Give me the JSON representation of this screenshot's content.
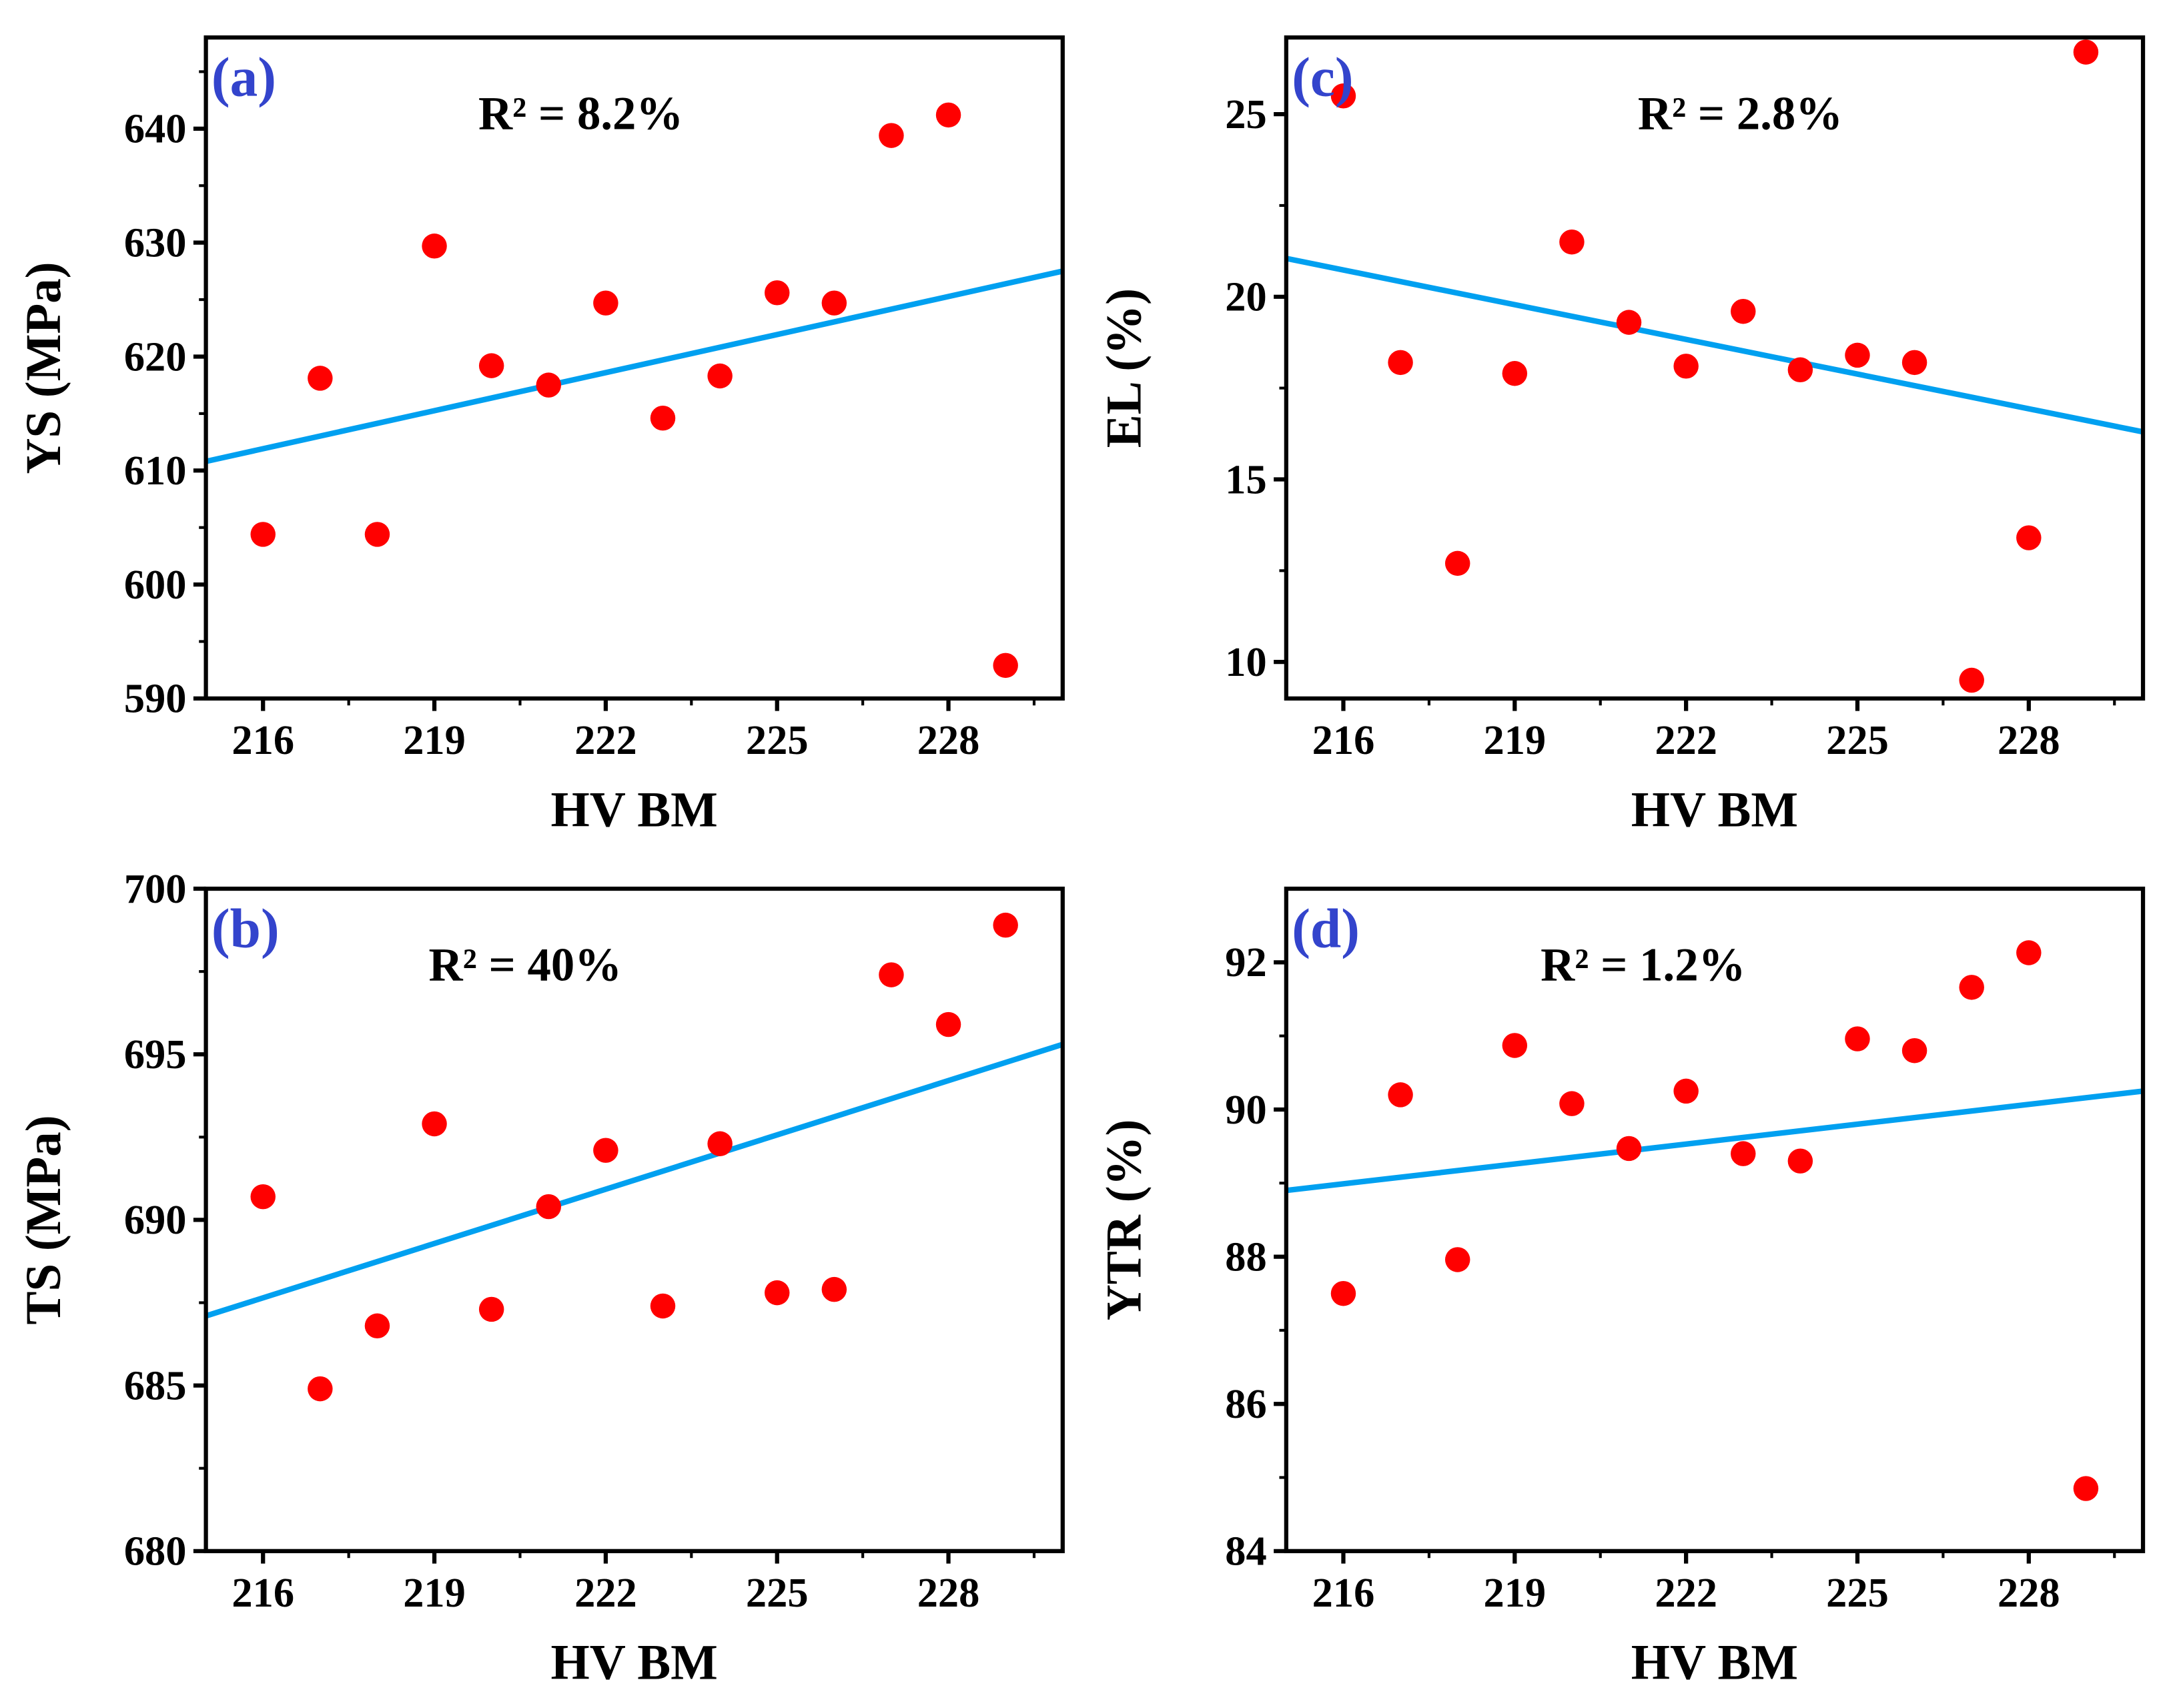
{
  "colors": {
    "points": "#ff0000",
    "fit_line": "#00a0f0",
    "panel_label": "#3344cc",
    "axis": "#000000"
  },
  "chart_data": [
    {
      "type": "scatter",
      "panel_label": "(a)",
      "annotation": "R² = 8.2%",
      "xlabel": "HV BM",
      "ylabel": "YS (MPa)",
      "x": [
        216,
        217,
        218,
        219,
        220,
        221,
        222,
        223,
        224,
        225,
        226,
        227,
        228,
        229
      ],
      "y": [
        604.4,
        618.1,
        604.4,
        629.7,
        619.2,
        617.5,
        624.7,
        614.6,
        618.3,
        625.6,
        624.7,
        639.4,
        641.2,
        592.9
      ],
      "fit_line": {
        "x": [
          215,
          230
        ],
        "y": [
          610.8,
          627.5
        ]
      },
      "xlim": [
        215,
        230
      ],
      "ylim": [
        590,
        648
      ],
      "xticks": [
        216,
        219,
        222,
        225,
        228
      ],
      "yticks": [
        590,
        600,
        610,
        620,
        630,
        640
      ],
      "yminor": 5
    },
    {
      "type": "scatter",
      "panel_label": "(b)",
      "annotation": "R² = 40%",
      "xlabel": "HV BM",
      "ylabel": "TS (MPa)",
      "x": [
        216,
        217,
        218,
        219,
        220,
        221,
        222,
        223,
        224,
        225,
        226,
        227,
        228,
        229
      ],
      "y": [
        690.7,
        684.9,
        686.8,
        692.9,
        687.3,
        690.4,
        692.1,
        687.4,
        692.3,
        687.8,
        687.9,
        697.4,
        695.9,
        698.9
      ],
      "fit_line": {
        "x": [
          215,
          230
        ],
        "y": [
          687.1,
          695.3
        ]
      },
      "xlim": [
        215,
        230
      ],
      "ylim": [
        680,
        700
      ],
      "xticks": [
        216,
        219,
        222,
        225,
        228
      ],
      "yticks": [
        680,
        685,
        690,
        695,
        700
      ],
      "yminor": 2.5
    },
    {
      "type": "scatter",
      "panel_label": "(c)",
      "annotation": "R² = 2.8%",
      "xlabel": "HV BM",
      "ylabel": "EL (%)",
      "x": [
        216,
        217,
        218,
        219,
        220,
        221,
        222,
        223,
        224,
        225,
        226,
        227,
        228,
        229
      ],
      "y": [
        25.5,
        18.2,
        12.7,
        17.9,
        21.5,
        19.3,
        18.1,
        19.6,
        18.0,
        18.4,
        18.2,
        9.5,
        13.4,
        26.7
      ],
      "fit_line": {
        "x": [
          215,
          230
        ],
        "y": [
          21.05,
          16.3
        ]
      },
      "xlim": [
        215,
        230
      ],
      "ylim": [
        9.0,
        27.1
      ],
      "xticks": [
        216,
        219,
        222,
        225,
        228
      ],
      "yticks": [
        10,
        15,
        20,
        25
      ],
      "yminor": 2.5
    },
    {
      "type": "scatter",
      "panel_label": "(d)",
      "annotation": "R² = 1.2%",
      "xlabel": "HV BM",
      "ylabel": "YTR (%)",
      "x": [
        216,
        217,
        218,
        219,
        220,
        221,
        222,
        223,
        224,
        225,
        226,
        227,
        228,
        229
      ],
      "y": [
        87.5,
        90.2,
        87.96,
        90.87,
        90.08,
        89.47,
        90.25,
        89.4,
        89.3,
        90.96,
        90.8,
        91.66,
        92.13,
        84.85
      ],
      "fit_line": {
        "x": [
          215,
          230
        ],
        "y": [
          88.9,
          90.25
        ]
      },
      "xlim": [
        215,
        230
      ],
      "ylim": [
        84,
        93
      ],
      "xticks": [
        216,
        219,
        222,
        225,
        228
      ],
      "yticks": [
        84,
        86,
        88,
        90,
        92
      ],
      "yminor": 1
    }
  ]
}
